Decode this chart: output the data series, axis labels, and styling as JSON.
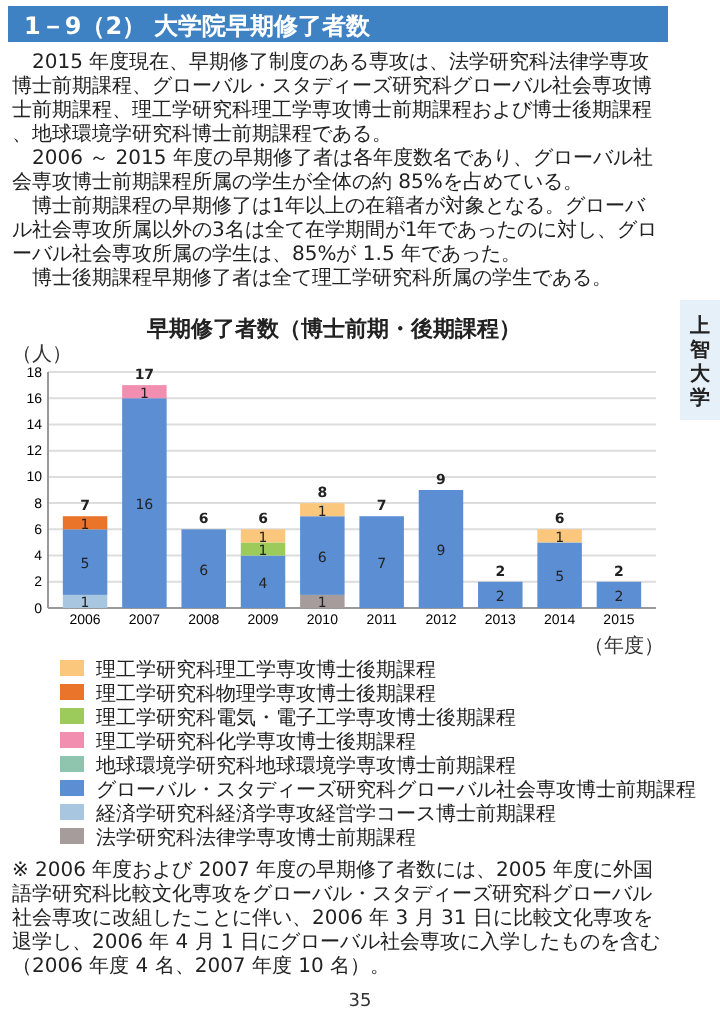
{
  "chart_data": {
    "type": "bar",
    "stacked": true,
    "title": "1－9（2） 大学院早期修了者数",
    "subtitle": "早期修了者数（博士前期・後期課程）",
    "ylabel": "（人）",
    "xlabel": "（年度）",
    "categories": [
      "2006",
      "2007",
      "2008",
      "2009",
      "2010",
      "2011",
      "2012",
      "2013",
      "2014",
      "2015"
    ],
    "series": [
      {
        "name": "法学研究科法律学専攻博士前期課程",
        "color": "#a79c9c",
        "values": [
          null,
          null,
          null,
          null,
          1,
          null,
          null,
          null,
          null,
          null
        ]
      },
      {
        "name": "経済学研究科経済学専攻経営学コース博士前期課程",
        "color": "#a8c6e0",
        "values": [
          1,
          null,
          null,
          null,
          null,
          null,
          null,
          null,
          null,
          null
        ]
      },
      {
        "name": "グローバル・スタディーズ研究科グローバル社会専攻博士前期課程",
        "color": "#5b8ed2",
        "values": [
          5,
          16,
          6,
          4,
          6,
          7,
          9,
          2,
          5,
          2
        ]
      },
      {
        "name": "地球環境学研究科地球環境学専攻博士前期課程",
        "color": "#8fc4ae",
        "values": [
          null,
          null,
          null,
          null,
          null,
          null,
          null,
          null,
          null,
          null
        ]
      },
      {
        "name": "理工学研究科化学専攻博士後期課程",
        "color": "#f28fb0",
        "values": [
          null,
          1,
          null,
          null,
          null,
          null,
          null,
          null,
          null,
          null
        ]
      },
      {
        "name": "理工学研究科電気・電子工学専攻博士後期課程",
        "color": "#9ccb5c",
        "values": [
          null,
          null,
          null,
          1,
          null,
          null,
          null,
          null,
          null,
          null
        ]
      },
      {
        "name": "理工学研究科物理学専攻博士後期課程",
        "color": "#e9742a",
        "values": [
          1,
          null,
          null,
          null,
          null,
          null,
          null,
          null,
          null,
          null
        ]
      },
      {
        "name": "理工学研究科理工学専攻博士後期課程",
        "color": "#fbc77c",
        "values": [
          null,
          null,
          null,
          1,
          1,
          null,
          null,
          null,
          1,
          null
        ]
      }
    ],
    "totals": [
      "7",
      "17",
      "6",
      "6",
      "8",
      "7",
      "9",
      "2",
      "6",
      "2"
    ],
    "data_labels": true,
    "ylim": [
      0,
      18
    ],
    "yticks": [
      0,
      2,
      4,
      6,
      8,
      10,
      12,
      14,
      16,
      18
    ],
    "grid": "y",
    "legend": "right",
    "annotations": [
      "2015 年度現在、早期修了制度のある専攻は、法学研究科法律学専攻博士前期課程、グローバル・スタディーズ研究科グローバル社会専攻博士前期課程、理工学研究科理工学専攻博士前期課程および博士後期課程、地球環境学研究科博士前期課程である。",
      "2006 ～ 2015 年度の早期修了者は各年度数名であり、グローバル社会専攻博士前期課程所属の学生が全体の約 85%を占めている。",
      "博士前期課程の早期修了は1年以上の在籍者が対象となる。グローバル社会専攻所属以外の3名は全て在学期間が1年であったのに対し、グローバル社会専攻所属の学生は、85%が 1.5 年であった。",
      "博士後期課程早期修了者は全て理工学研究科所属の学生である。",
      "※ 2006 年度および 2007 年度の早期修了者数には、2005 年度に外国語学研究科比較文化専攻をグローバル・スタディーズ研究科グローバル社会専攻に改組したことに伴い、2006 年 3 月 31 日に比較文化専攻を退学し、2006 年 4 月 1 日にグローバル社会専攻に入学したものを含む（2006 年度 4 名、2007 年度 10 名）。",
      "上智大学",
      "35"
    ]
  }
}
